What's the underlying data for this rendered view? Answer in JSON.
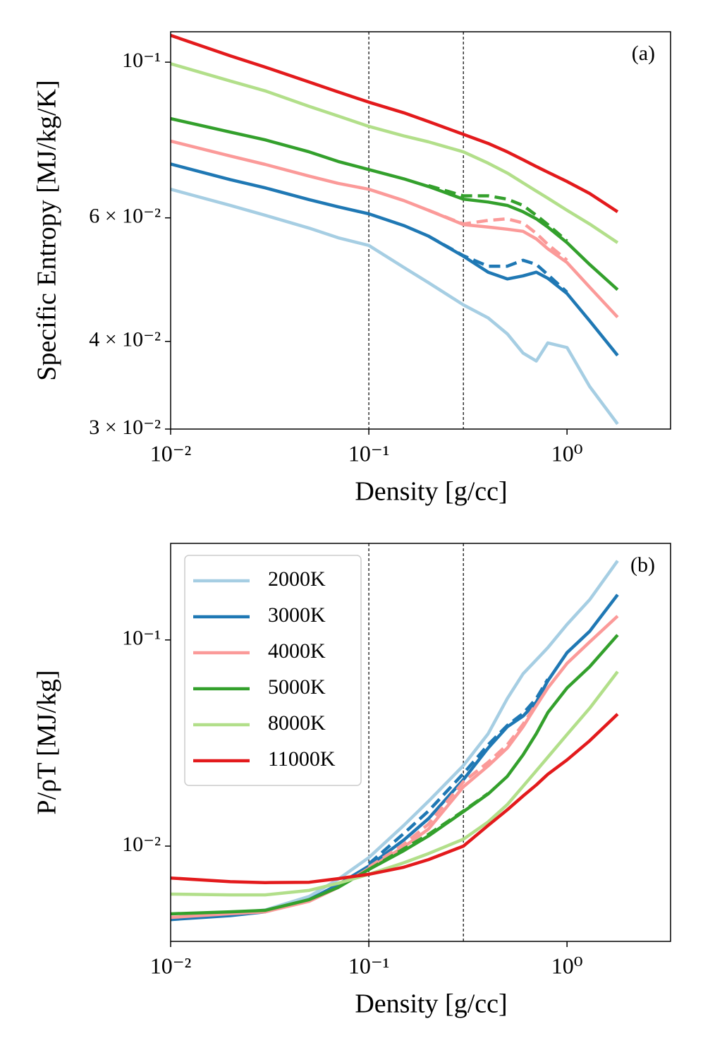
{
  "chart_data": [
    {
      "type": "line",
      "xscale": "log",
      "yscale": "log",
      "x_label": "Density [g/cc]",
      "y_label": "Specific Entropy [MJ/kg/K]",
      "annotation": "(a)",
      "xlim": [
        0.01,
        3.33
      ],
      "ylim": [
        0.03,
        0.1105
      ],
      "xticks": [
        {
          "value": 0.01,
          "label": "10⁻²"
        },
        {
          "value": 0.1,
          "label": "10⁻¹"
        },
        {
          "value": 1,
          "label": "10⁰"
        }
      ],
      "yticks": [
        {
          "value": 0.03,
          "label": "3 × 10⁻²"
        },
        {
          "value": 0.04,
          "label": "4 × 10⁻²"
        },
        {
          "value": 0.06,
          "label": "6 × 10⁻²"
        },
        {
          "value": 0.1,
          "label": "10⁻¹"
        }
      ],
      "vlines": [
        0.1,
        0.3
      ],
      "x": [
        0.01,
        0.02,
        0.03,
        0.05,
        0.07,
        0.1,
        0.15,
        0.2,
        0.3,
        0.4,
        0.5,
        0.6,
        0.7,
        0.8,
        1.0,
        1.3,
        1.8
      ],
      "series": [
        {
          "color": "#a6cee3",
          "values": [
            0.0659,
            0.0625,
            0.0605,
            0.058,
            0.0562,
            0.0548,
            0.051,
            0.0485,
            0.0451,
            0.0432,
            0.041,
            0.0385,
            0.0375,
            0.0398,
            0.0392,
            0.0345,
            0.0305
          ]
        },
        {
          "color": "#1f78b4",
          "values": [
            0.0716,
            0.068,
            0.0662,
            0.0637,
            0.0622,
            0.0608,
            0.0585,
            0.0565,
            0.0529,
            0.0502,
            0.0491,
            0.0496,
            0.0502,
            0.0492,
            0.0468,
            0.0428,
            0.0382
          ]
        },
        {
          "color": "#fb9a99",
          "values": [
            0.0772,
            0.0735,
            0.0715,
            0.0688,
            0.0672,
            0.0659,
            0.0635,
            0.0615,
            0.0587,
            0.0582,
            0.0578,
            0.0574,
            0.056,
            0.0542,
            0.0518,
            0.0478,
            0.0433
          ]
        },
        {
          "color": "#33a02c",
          "values": [
            0.0831,
            0.0795,
            0.0775,
            0.0745,
            0.0722,
            0.0703,
            0.0682,
            0.0665,
            0.0638,
            0.0632,
            0.0625,
            0.0612,
            0.0598,
            0.0582,
            0.0553,
            0.0515,
            0.0474
          ]
        },
        {
          "color": "#b2df8a",
          "values": [
            0.0995,
            0.094,
            0.091,
            0.0865,
            0.0838,
            0.081,
            0.0785,
            0.077,
            0.0745,
            0.0718,
            0.0695,
            0.0673,
            0.0655,
            0.064,
            0.0615,
            0.0588,
            0.0553
          ]
        },
        {
          "color": "#e31a1c",
          "values": [
            0.1092,
            0.1021,
            0.0984,
            0.0937,
            0.0907,
            0.0877,
            0.0847,
            0.0823,
            0.0789,
            0.0766,
            0.0745,
            0.0726,
            0.071,
            0.0697,
            0.0676,
            0.065,
            0.0612
          ]
        }
      ],
      "dashed_series": [
        {
          "color": "#1f78b4",
          "values": [
            null,
            null,
            null,
            null,
            null,
            null,
            null,
            0.0565,
            0.053,
            0.0512,
            0.0512,
            0.0522,
            0.0515,
            0.0498,
            0.047,
            null,
            null
          ]
        },
        {
          "color": "#fb9a99",
          "values": [
            null,
            null,
            null,
            null,
            null,
            null,
            null,
            0.0615,
            0.0588,
            0.0595,
            0.0598,
            0.059,
            0.057,
            0.055,
            0.0522,
            null,
            null
          ]
        },
        {
          "color": "#33a02c",
          "values": [
            null,
            null,
            null,
            null,
            null,
            null,
            null,
            0.0667,
            0.0645,
            0.0645,
            0.0638,
            0.0625,
            0.0605,
            0.0587,
            0.0556,
            null,
            null
          ]
        }
      ]
    },
    {
      "type": "line",
      "xscale": "log",
      "yscale": "log",
      "x_label": "Density [g/cc]",
      "y_label": "P/ρT [MJ/kg]",
      "annotation": "(b)",
      "legend": "upper left",
      "xlim": [
        0.01,
        3.33
      ],
      "ylim": [
        0.00345,
        0.294
      ],
      "xticks": [
        {
          "value": 0.01,
          "label": "10⁻²"
        },
        {
          "value": 0.1,
          "label": "10⁻¹"
        },
        {
          "value": 1,
          "label": "10⁰"
        }
      ],
      "yticks": [
        {
          "value": 0.01,
          "label": "10⁻²"
        },
        {
          "value": 0.1,
          "label": "10⁻¹"
        }
      ],
      "vlines": [
        0.1,
        0.3
      ],
      "x": [
        0.01,
        0.02,
        0.03,
        0.05,
        0.07,
        0.1,
        0.15,
        0.2,
        0.3,
        0.4,
        0.5,
        0.6,
        0.7,
        0.8,
        1.0,
        1.3,
        1.8
      ],
      "series": [
        {
          "name": "2000K",
          "color": "#a6cee3",
          "values": [
            0.0044,
            0.0047,
            0.0049,
            0.0057,
            0.0069,
            0.0088,
            0.0126,
            0.0165,
            0.0246,
            0.0351,
            0.052,
            0.0685,
            0.08,
            0.0917,
            0.119,
            0.1566,
            0.242
          ]
        },
        {
          "name": "3000K",
          "color": "#1f78b4",
          "values": [
            0.0044,
            0.0046,
            0.0048,
            0.0055,
            0.0065,
            0.008,
            0.0107,
            0.0136,
            0.021,
            0.0299,
            0.0379,
            0.0427,
            0.05,
            0.0633,
            0.0868,
            0.11,
            0.1656
          ]
        },
        {
          "name": "4000K",
          "color": "#fb9a99",
          "values": [
            0.00451,
            0.0047,
            0.0048,
            0.0054,
            0.0063,
            0.0078,
            0.0099,
            0.0121,
            0.0194,
            0.0245,
            0.0299,
            0.0379,
            0.048,
            0.0585,
            0.077,
            0.0977,
            0.1306
          ]
        },
        {
          "name": "5000K",
          "color": "#33a02c",
          "values": [
            0.00469,
            0.0048,
            0.00488,
            0.0055,
            0.0063,
            0.0077,
            0.0095,
            0.0112,
            0.0147,
            0.0179,
            0.0218,
            0.0277,
            0.0351,
            0.0444,
            0.0585,
            0.0741,
            0.1057
          ]
        },
        {
          "name": "8000K",
          "color": "#b2df8a",
          "values": [
            0.00585,
            0.0058,
            0.0058,
            0.0061,
            0.0066,
            0.0073,
            0.0083,
            0.0092,
            0.0108,
            0.0131,
            0.0159,
            0.0195,
            0.0232,
            0.027,
            0.0348,
            0.0466,
            0.0702
          ]
        },
        {
          "name": "11000K",
          "color": "#e31a1c",
          "values": [
            0.007,
            0.00672,
            0.00665,
            0.00668,
            0.00695,
            0.0073,
            0.0079,
            0.0086,
            0.01,
            0.0126,
            0.015,
            0.0175,
            0.0198,
            0.0223,
            0.0262,
            0.0324,
            0.0437
          ]
        }
      ],
      "dashed_series": [
        {
          "color": "#1f78b4",
          "values": [
            null,
            null,
            null,
            null,
            null,
            0.0082,
            0.0115,
            0.0148,
            0.0225,
            0.031,
            0.0385,
            0.044,
            0.052,
            0.0645,
            null,
            null,
            null
          ]
        },
        {
          "color": "#fb9a99",
          "values": [
            null,
            null,
            null,
            null,
            null,
            0.0079,
            0.0102,
            0.0128,
            0.0205,
            0.0255,
            0.031,
            0.039,
            0.049,
            null,
            null,
            null,
            null
          ]
        },
        {
          "color": "#33a02c",
          "values": [
            null,
            null,
            null,
            null,
            null,
            0.0077,
            0.0097,
            0.0114,
            0.0148,
            0.018,
            null,
            null,
            null,
            null,
            null,
            null,
            null
          ]
        }
      ]
    }
  ]
}
